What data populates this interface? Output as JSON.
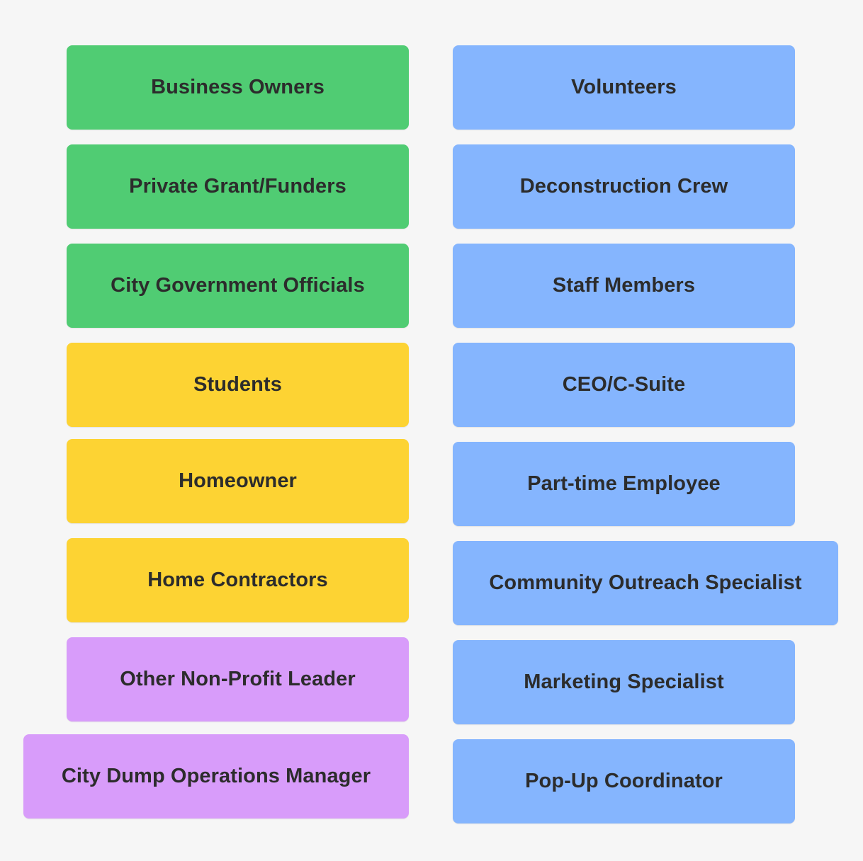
{
  "colors": {
    "green": "#50cc73",
    "yellow": "#fdd333",
    "purple": "#d89cfa",
    "blue": "#85b5fe",
    "background": "#f6f6f6",
    "text": "#2c2c2c"
  },
  "left_column": [
    {
      "label": "Business Owners",
      "color": "green"
    },
    {
      "label": "Private Grant/Funders",
      "color": "green"
    },
    {
      "label": "City Government Officials",
      "color": "green"
    },
    {
      "label": "Students",
      "color": "yellow"
    },
    {
      "label": "Homeowner",
      "color": "yellow"
    },
    {
      "label": "Home Contractors",
      "color": "yellow"
    },
    {
      "label": "Other Non-Profit Leader",
      "color": "purple"
    },
    {
      "label": "City Dump Operations Manager",
      "color": "purple"
    }
  ],
  "right_column": [
    {
      "label": "Volunteers",
      "color": "blue"
    },
    {
      "label": "Deconstruction Crew",
      "color": "blue"
    },
    {
      "label": "Staff Members",
      "color": "blue"
    },
    {
      "label": "CEO/C-Suite",
      "color": "blue"
    },
    {
      "label": "Part-time Employee",
      "color": "blue"
    },
    {
      "label": "Community Outreach Specialist",
      "color": "blue"
    },
    {
      "label": "Marketing Specialist",
      "color": "blue"
    },
    {
      "label": "Pop-Up Coordinator",
      "color": "blue"
    }
  ]
}
